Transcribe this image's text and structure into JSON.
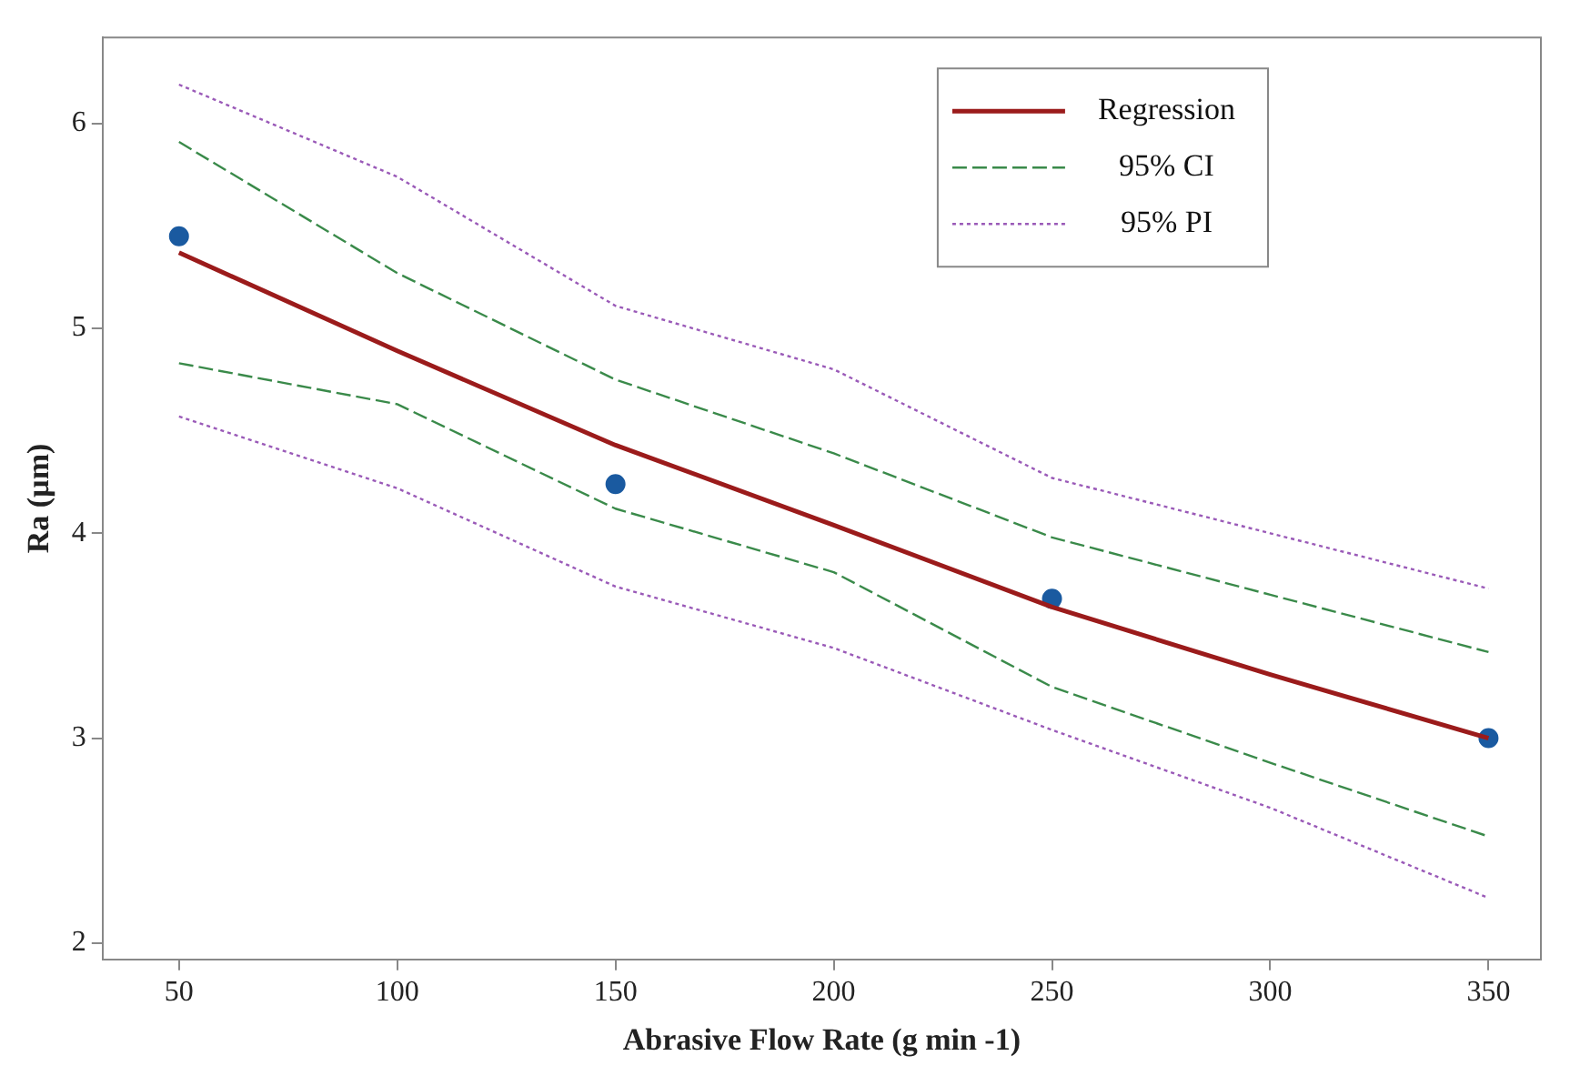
{
  "chart_data": {
    "type": "line",
    "xlabel": "Abrasive Flow Rate (g min -1)",
    "ylabel": "Ra (µm)",
    "x": [
      50,
      100,
      150,
      200,
      250,
      300,
      350
    ],
    "xlim": [
      32.5,
      362
    ],
    "ylim": [
      1.92,
      6.42
    ],
    "xticks": [
      50,
      100,
      150,
      200,
      250,
      300,
      350
    ],
    "yticks": [
      2,
      3,
      4,
      5,
      6
    ],
    "grid": false,
    "legend": "top right",
    "marker": "none",
    "series": [
      {
        "name": "Regression",
        "color": "#9b1b1b",
        "line_style": "solid",
        "values": [
          5.37,
          4.89,
          4.43,
          4.04,
          3.64,
          3.31,
          3.0
        ]
      },
      {
        "name": "95% CI",
        "color": "#3a8a4a",
        "line_style": "dashed",
        "values": [
          5.91,
          5.27,
          4.75,
          4.39,
          3.98,
          3.7,
          3.42
        ]
      },
      {
        "color": "#3a8a4a",
        "line_style": "dashed",
        "values": [
          4.83,
          4.63,
          4.12,
          3.81,
          3.25,
          2.88,
          2.52
        ]
      },
      {
        "name": "95% PI",
        "color": "#9a5ab8",
        "line_style": "dotted",
        "values": [
          6.19,
          5.74,
          5.11,
          4.8,
          4.27,
          4.0,
          3.73
        ]
      },
      {
        "color": "#9a5ab8",
        "line_style": "dotted",
        "values": [
          4.57,
          4.22,
          3.74,
          3.44,
          3.04,
          2.66,
          2.22
        ]
      },
      {
        "type": "scatter",
        "marker": "circle",
        "color": "#1a5aa0",
        "x": [
          50,
          150,
          250,
          350
        ],
        "values": [
          5.45,
          4.24,
          3.68,
          3.0
        ]
      }
    ]
  }
}
